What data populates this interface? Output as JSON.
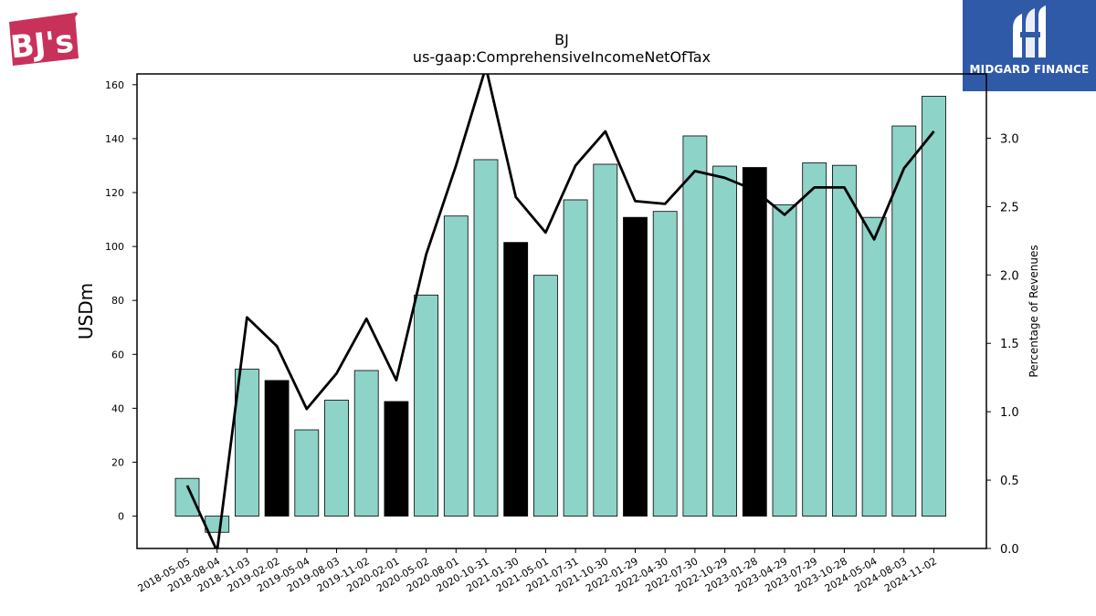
{
  "logos": {
    "company_logo_text": "BJ's",
    "brand_name": "MIDGARD FINANCE"
  },
  "colors": {
    "bar_normal": "#8dd3c7",
    "bar_highlight": "#000000",
    "line": "#000000",
    "midgard_bg": "#2f5aa8",
    "bj_logo": "#c8325a"
  },
  "chart_data": {
    "type": "bar",
    "title": "BJ",
    "subtitle": "us-gaap:ComprehensiveIncomeNetOfTax",
    "ylabel": "USDm",
    "y2label": "Percentage of Revenues",
    "ylim": [
      -12,
      164
    ],
    "y2lim": [
      0.0,
      3.47
    ],
    "yticks": [
      0,
      20,
      40,
      60,
      80,
      100,
      120,
      140,
      160
    ],
    "y2ticks": [
      "0.0",
      "0.5",
      "1.0",
      "1.5",
      "2.0",
      "2.5",
      "3.0"
    ],
    "grid": false,
    "categories": [
      "2018-05-05",
      "2018-08-04",
      "2018-11-03",
      "2019-02-02",
      "2019-05-04",
      "2019-08-03",
      "2019-11-02",
      "2020-02-01",
      "2020-05-02",
      "2020-08-01",
      "2020-10-31",
      "2021-01-30",
      "2021-05-01",
      "2021-07-31",
      "2021-10-30",
      "2022-01-29",
      "2022-04-30",
      "2022-07-30",
      "2022-10-29",
      "2023-01-28",
      "2023-04-29",
      "2023-07-29",
      "2023-10-28",
      "2024-05-04",
      "2024-08-03",
      "2024-11-02"
    ],
    "series": [
      {
        "type": "bar",
        "axis": "left",
        "values": [
          14,
          -6,
          54.5,
          50.3,
          32,
          43,
          54,
          42.5,
          82,
          111.3,
          132.2,
          101.5,
          89.3,
          117.3,
          130.5,
          110.8,
          113,
          141,
          129.8,
          129.3,
          115.5,
          131,
          130.1,
          110.8,
          144.7,
          155.7
        ],
        "highlight": [
          false,
          false,
          false,
          true,
          false,
          false,
          false,
          true,
          false,
          false,
          false,
          true,
          false,
          false,
          false,
          true,
          false,
          false,
          false,
          true,
          false,
          false,
          false,
          false,
          false,
          false
        ]
      },
      {
        "type": "line",
        "axis": "right",
        "values": [
          0.46,
          -0.02,
          1.69,
          1.48,
          1.02,
          1.28,
          1.68,
          1.23,
          2.15,
          2.8,
          3.52,
          2.57,
          2.31,
          2.8,
          3.05,
          2.54,
          2.52,
          2.76,
          2.71,
          2.62,
          2.44,
          2.64,
          2.64,
          2.26,
          2.78,
          3.05
        ]
      }
    ]
  }
}
